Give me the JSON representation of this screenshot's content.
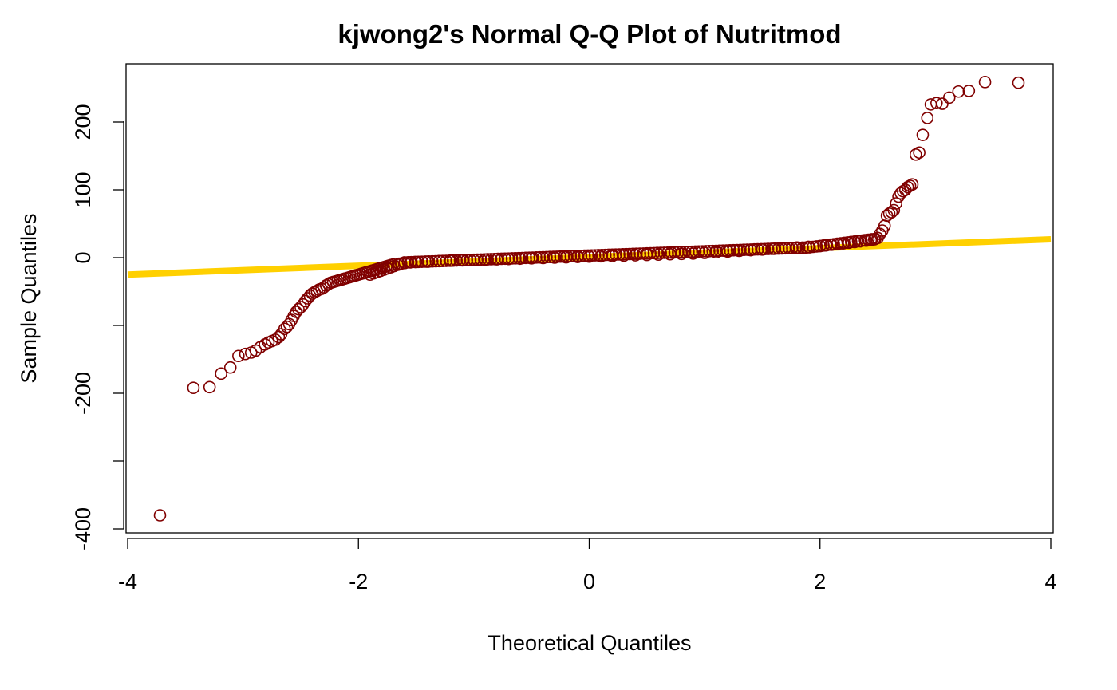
{
  "chart_data": {
    "type": "scatter",
    "title": "kjwong2's Normal Q-Q Plot of Nutritmod",
    "xlabel": "Theoretical Quantiles",
    "ylabel": "Sample Quantiles",
    "xlim": [
      -4,
      4
    ],
    "ylim": [
      -400,
      270
    ],
    "x_ticks": [
      -4,
      -2,
      0,
      2,
      4
    ],
    "y_ticks": [
      -400,
      -300,
      -200,
      -100,
      0,
      100,
      200
    ],
    "y_tick_labels": [
      "-400",
      "",
      "-200",
      "",
      "0",
      "100",
      "200"
    ],
    "grid": false,
    "colors": {
      "points": "#800000",
      "line": "#ffd000"
    },
    "reference_line": {
      "from": [
        -4,
        -25
      ],
      "to": [
        4,
        27
      ]
    },
    "points": {
      "x": [
        -3.72,
        -3.43,
        -3.29,
        -3.19,
        -3.11,
        -3.04,
        -2.98,
        -2.93,
        -2.89,
        -2.85,
        -2.81,
        -2.78,
        -2.75,
        -2.72,
        -2.69,
        -2.67,
        -2.64,
        -2.62,
        -2.6,
        -2.58,
        -2.56,
        -2.54,
        -2.52,
        -2.5,
        -2.48,
        -2.46,
        -2.44,
        -2.42,
        -2.4,
        -2.38,
        -2.36,
        -2.34,
        -2.32,
        -2.3,
        -2.28,
        -2.26,
        -2.24,
        -2.22,
        -2.2,
        -2.18,
        -2.16,
        -2.14,
        -2.12,
        -2.1,
        -2.08,
        -2.06,
        -2.04,
        -2.02,
        -2.0,
        -1.98,
        -1.96,
        -1.94,
        -1.92,
        -1.9,
        -1.88,
        -1.86,
        -1.84,
        -1.82,
        -1.8,
        -1.78,
        -1.76,
        -1.74,
        -1.72,
        -1.7,
        -1.65,
        -1.6,
        -1.55,
        -1.5,
        -1.4,
        -1.3,
        -1.2,
        -1.1,
        -1.0,
        -0.9,
        -0.8,
        -0.7,
        -0.6,
        -0.5,
        -0.4,
        -0.3,
        -0.2,
        -0.1,
        0.0,
        0.1,
        0.2,
        0.3,
        0.4,
        0.5,
        0.6,
        0.7,
        0.8,
        0.9,
        1.0,
        1.1,
        1.2,
        1.3,
        1.4,
        1.5,
        1.6,
        1.7,
        1.8,
        1.9,
        2.0,
        2.05,
        2.1,
        2.15,
        2.2,
        2.25,
        2.3,
        2.35,
        2.4,
        2.44,
        2.47,
        2.5,
        2.52,
        2.54,
        2.56,
        2.58,
        2.6,
        2.62,
        2.64,
        2.66,
        2.68,
        2.7,
        2.72,
        2.74,
        2.76,
        2.78,
        2.8,
        2.83,
        2.86,
        2.89,
        2.93,
        2.96,
        3.01,
        3.06,
        3.12,
        3.2,
        3.29,
        3.43,
        3.72
      ],
      "y": [
        -380,
        -192,
        -191,
        -171,
        -162,
        -145,
        -142,
        -140,
        -137,
        -132,
        -128,
        -125,
        -123,
        -121,
        -117,
        -113,
        -105,
        -102,
        -98,
        -92,
        -86,
        -80,
        -76,
        -73,
        -69,
        -64,
        -60,
        -56,
        -53,
        -51,
        -49,
        -47,
        -46,
        -44,
        -41,
        -39,
        -37,
        -36,
        -35,
        -34,
        -33,
        -32,
        -31,
        -30,
        -29,
        -28,
        -27,
        -26,
        -25,
        -24,
        -23,
        -22,
        -21,
        -20,
        -19,
        -18,
        -17,
        -16,
        -15,
        -14,
        -13,
        -12,
        -11,
        -10,
        -9,
        -8,
        -7,
        -6.5,
        -6,
        -5,
        -4.5,
        -4,
        -3.5,
        -3,
        -2.5,
        -2,
        -1.5,
        -1,
        -0.5,
        0,
        0.5,
        1,
        1.5,
        2,
        2.5,
        3,
        3.5,
        4,
        4.5,
        5,
        5.5,
        6,
        7,
        8,
        9,
        10,
        11,
        12,
        13,
        14,
        15,
        16,
        17,
        18,
        19,
        20,
        21,
        22,
        23,
        24,
        25,
        26,
        27,
        29,
        35,
        40,
        47,
        62,
        65,
        67,
        70,
        80,
        90,
        95,
        98,
        100,
        104,
        106,
        108,
        152,
        155,
        181,
        206,
        226,
        228,
        227,
        236,
        245,
        246,
        259,
        258
      ]
    }
  }
}
